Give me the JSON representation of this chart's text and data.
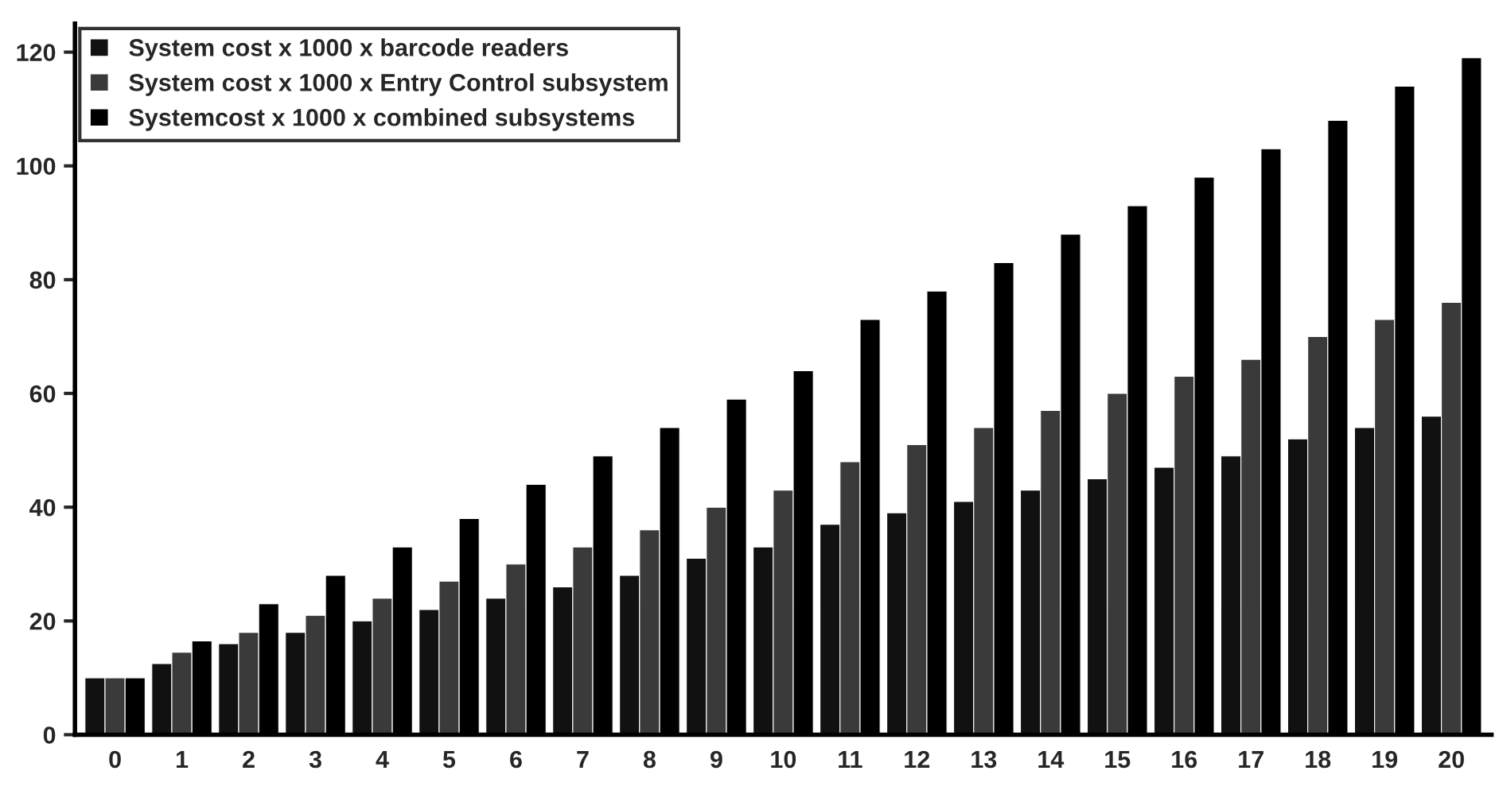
{
  "chart_data": {
    "type": "bar",
    "categories": [
      "0",
      "1",
      "2",
      "3",
      "4",
      "5",
      "6",
      "7",
      "8",
      "9",
      "10",
      "11",
      "12",
      "13",
      "14",
      "15",
      "16",
      "17",
      "18",
      "19",
      "20"
    ],
    "series": [
      {
        "name": "System cost x 1000 x barcode readers",
        "color": "#111111",
        "values": [
          10,
          12.5,
          16,
          18,
          20,
          22,
          24,
          26,
          28,
          31,
          33,
          37,
          39,
          41,
          43,
          45,
          47,
          49,
          52,
          54,
          56
        ]
      },
      {
        "name": "System cost x 1000 x Entry Control subsystem",
        "color": "#3a3a3a",
        "values": [
          10,
          14.5,
          18,
          21,
          24,
          27,
          30,
          33,
          36,
          40,
          43,
          48,
          51,
          54,
          57,
          60,
          63,
          66,
          70,
          73,
          76
        ]
      },
      {
        "name": "Systemcost x 1000 x combined subsystems",
        "color": "#000000",
        "values": [
          10,
          16.5,
          23,
          28,
          33,
          38,
          44,
          49,
          54,
          59,
          64,
          73,
          78,
          83,
          88,
          93,
          98,
          103,
          108,
          114,
          119
        ]
      }
    ],
    "ylim": [
      0,
      125
    ],
    "yticks": [
      0,
      20,
      40,
      60,
      80,
      100,
      120
    ],
    "grid": false,
    "legend": "top left"
  }
}
